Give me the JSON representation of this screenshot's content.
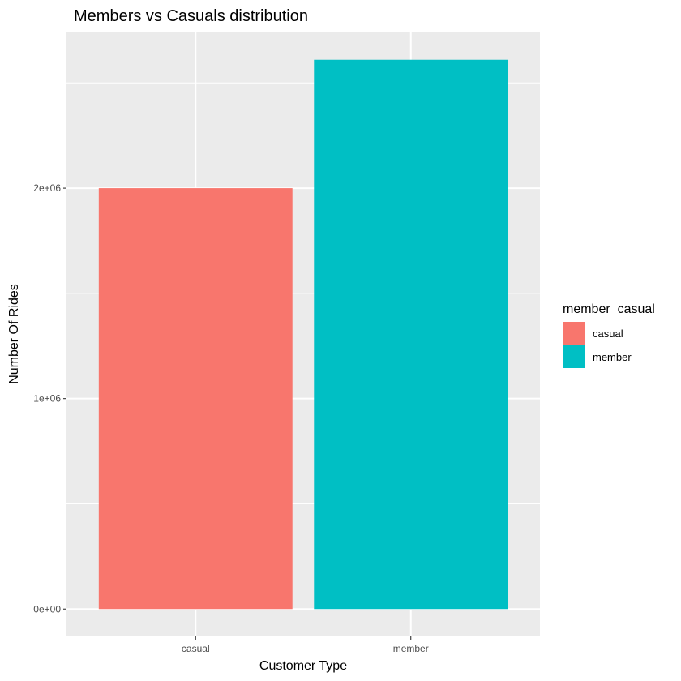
{
  "chart_data": {
    "type": "bar",
    "title": "Members vs Casuals distribution",
    "xlabel": "Customer Type",
    "ylabel": "Number Of Rides",
    "categories": [
      "casual",
      "member"
    ],
    "values": [
      2000000,
      2610000
    ],
    "colors": [
      "#F8766D",
      "#00BFC4"
    ],
    "ylim": [
      -130000,
      2740000
    ],
    "yticks": [
      0,
      1000000,
      2000000
    ],
    "ytick_labels": [
      "0e+00",
      "1e+06",
      "2e+06"
    ],
    "grid": true,
    "panel_background": "#EBEBEB",
    "legend": {
      "title": "member_casual",
      "placement": "right",
      "entries": [
        "casual",
        "member"
      ]
    }
  }
}
